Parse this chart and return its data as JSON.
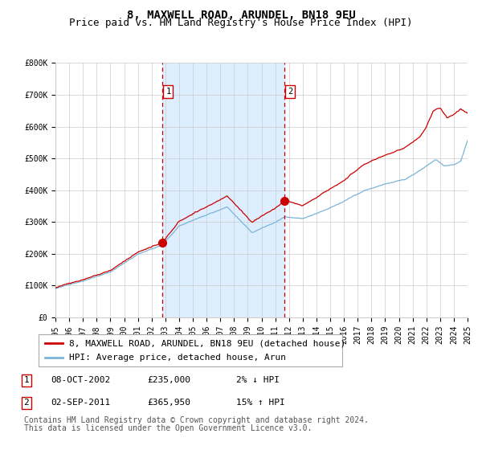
{
  "title": "8, MAXWELL ROAD, ARUNDEL, BN18 9EU",
  "subtitle": "Price paid vs. HM Land Registry's House Price Index (HPI)",
  "ylim": [
    0,
    800000
  ],
  "yticks": [
    0,
    100000,
    200000,
    300000,
    400000,
    500000,
    600000,
    700000,
    800000
  ],
  "ytick_labels": [
    "£0",
    "£100K",
    "£200K",
    "£300K",
    "£400K",
    "£500K",
    "£600K",
    "£700K",
    "£800K"
  ],
  "x_start_year": 1995,
  "x_end_year": 2025,
  "hpi_color": "#7ab5d9",
  "price_color": "#cc0000",
  "dashed_line_color": "#cc0000",
  "shade_color": "#ddeeff",
  "grid_color": "#cccccc",
  "bg_color": "#ffffff",
  "transaction1_year": 2002.78,
  "transaction1_price": 235000,
  "transaction2_year": 2011.67,
  "transaction2_price": 365950,
  "legend_label1": "8, MAXWELL ROAD, ARUNDEL, BN18 9EU (detached house)",
  "legend_label2": "HPI: Average price, detached house, Arun",
  "table_row1_num": "1",
  "table_row1_date": "08-OCT-2002",
  "table_row1_price": "£235,000",
  "table_row1_pct": "2% ↓ HPI",
  "table_row2_num": "2",
  "table_row2_date": "02-SEP-2011",
  "table_row2_price": "£365,950",
  "table_row2_pct": "15% ↑ HPI",
  "footnote1": "Contains HM Land Registry data © Crown copyright and database right 2024.",
  "footnote2": "This data is licensed under the Open Government Licence v3.0.",
  "title_fontsize": 10,
  "subtitle_fontsize": 9,
  "tick_fontsize": 7,
  "legend_fontsize": 8,
  "table_fontsize": 8,
  "footnote_fontsize": 7
}
